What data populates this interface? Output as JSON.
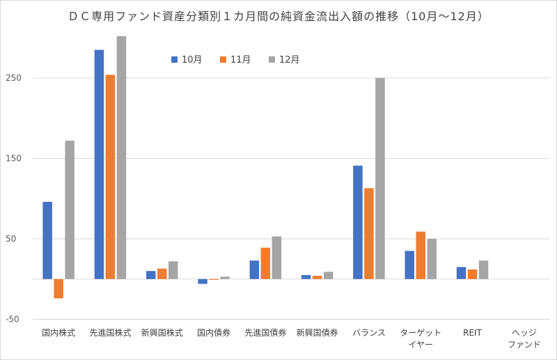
{
  "chart_data": {
    "type": "bar",
    "title": "ＤＣ専用ファンド資産分類別１カ月間の純資金流出入額の推移（10月〜12月）",
    "xlabel": "",
    "ylabel": "",
    "ylim": [
      -50,
      300
    ],
    "yticks": [
      -50,
      50,
      150,
      250
    ],
    "grid": true,
    "legend_position": "top",
    "categories": [
      [
        "国内株式"
      ],
      [
        "先進国株式"
      ],
      [
        "新興国株式"
      ],
      [
        "国内債券"
      ],
      [
        "先進国債券"
      ],
      [
        "新興国債券"
      ],
      [
        "バランス"
      ],
      [
        "ターゲット",
        "イヤー"
      ],
      [
        "REIT"
      ],
      [
        "ヘッジ",
        "ファンド"
      ]
    ],
    "series": [
      {
        "name": "10月",
        "color": "#4472c4",
        "values": [
          96,
          285,
          10,
          -6,
          23,
          5,
          141,
          35,
          15,
          0
        ]
      },
      {
        "name": "11月",
        "color": "#ed7d31",
        "values": [
          -24,
          254,
          13,
          -1,
          39,
          4,
          113,
          59,
          12,
          0
        ]
      },
      {
        "name": "12月",
        "color": "#a5a5a5",
        "values": [
          172,
          302,
          22,
          3,
          53,
          9,
          250,
          50,
          23,
          0
        ]
      }
    ]
  }
}
